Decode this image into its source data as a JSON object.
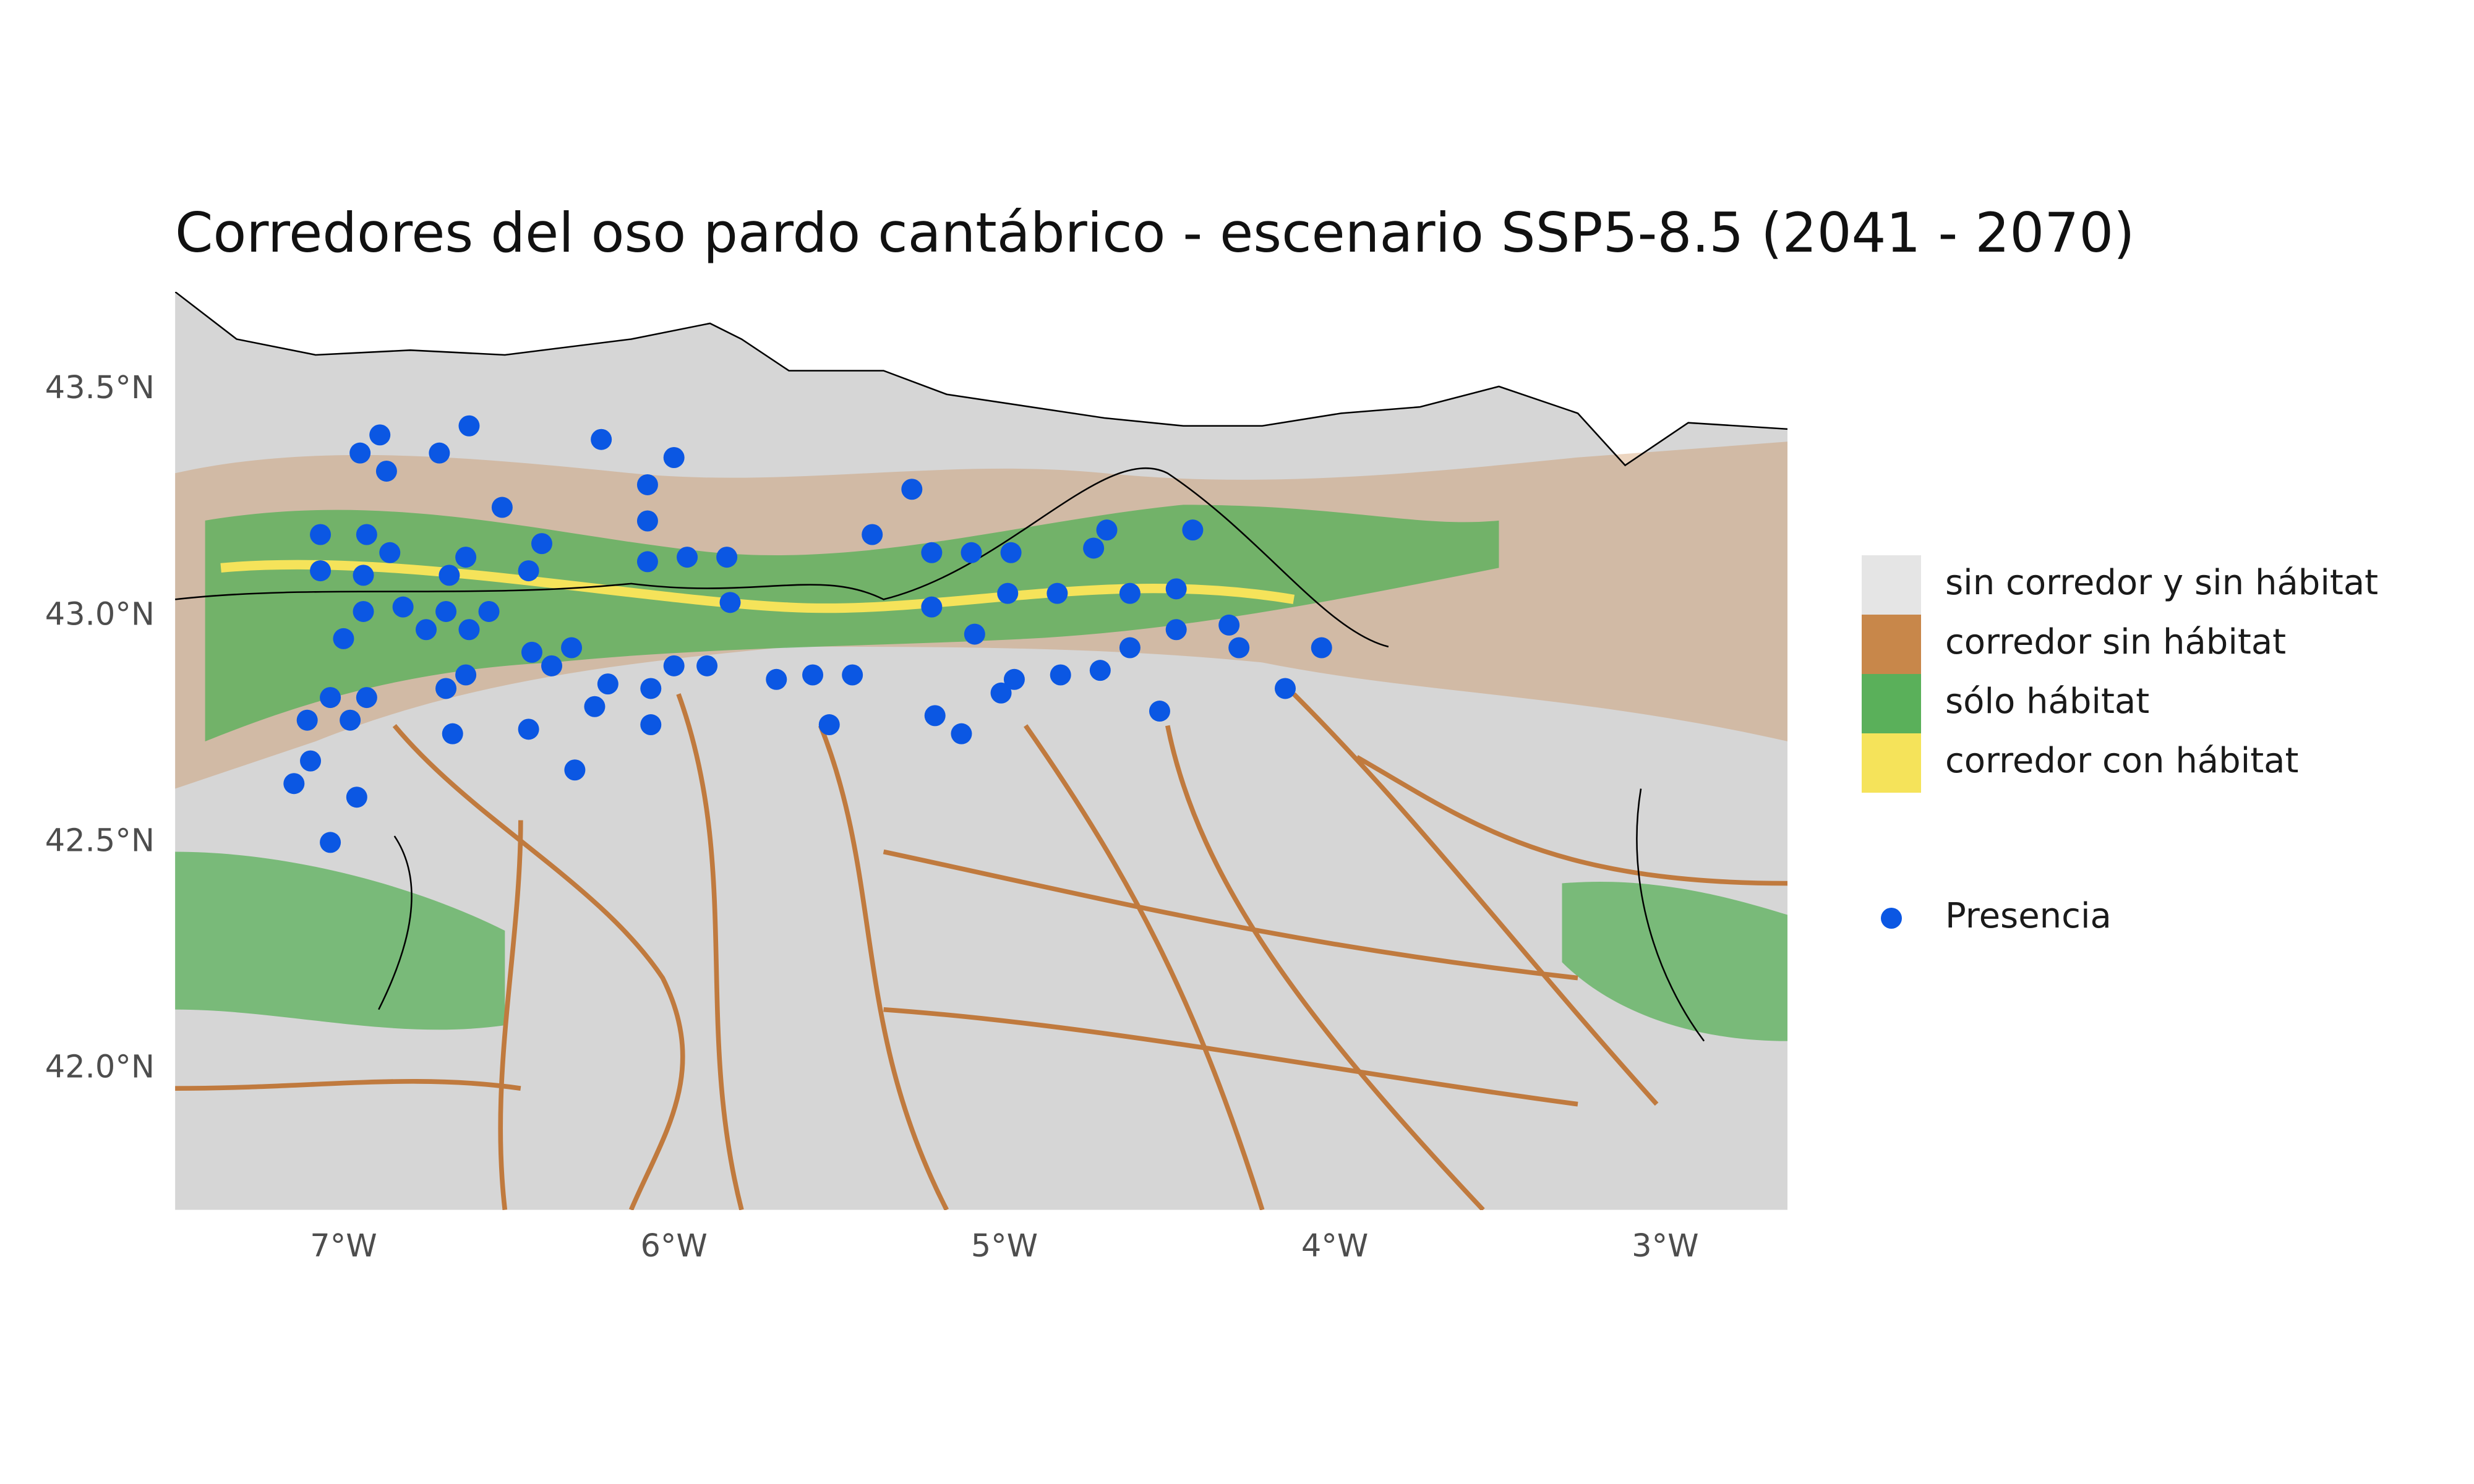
{
  "chart_data": {
    "type": "scatter",
    "title": "Corredores del oso pardo cantábrico - escenario SSP5-8.5 (2041 - 2070)",
    "xlim": [
      -7.51,
      -2.63
    ],
    "ylim": [
      41.688,
      43.716
    ],
    "xticks": [
      {
        "value": -7,
        "label": "7°W"
      },
      {
        "value": -6,
        "label": "6°W"
      },
      {
        "value": -5,
        "label": "5°W"
      },
      {
        "value": -4,
        "label": "4°W"
      },
      {
        "value": -3,
        "label": "3°W"
      }
    ],
    "yticks": [
      {
        "value": 42.0,
        "label": "42.0°N"
      },
      {
        "value": 42.5,
        "label": "42.5°N"
      },
      {
        "value": 43.0,
        "label": "43.0°N"
      },
      {
        "value": 43.5,
        "label": "43.5°N"
      }
    ],
    "grid": false,
    "legend": "right",
    "classes": [
      {
        "name": "sin corredor y sin hábitat",
        "color": "#e5e5e5"
      },
      {
        "name": "corredor sin hábitat",
        "color": "#c8874a"
      },
      {
        "name": "sólo hábitat",
        "color": "#5ab05a"
      },
      {
        "name": "corredor con hábitat",
        "color": "#f5e35a"
      }
    ],
    "x": [
      -6.89,
      -6.95,
      -6.87,
      -6.71,
      -6.62,
      -6.22,
      -6.0,
      -6.08,
      -6.52,
      -7.07,
      -6.93,
      -6.86,
      -7.07,
      -6.94,
      -6.63,
      -6.68,
      -6.4,
      -6.44,
      -6.08,
      -6.08,
      -5.96,
      -5.84,
      -5.83,
      -6.94,
      -6.82,
      -6.69,
      -6.56,
      -6.75,
      -6.62,
      -7.0,
      -6.43,
      -6.37,
      -6.31,
      -6.0,
      -5.9,
      -7.04,
      -6.93,
      -6.69,
      -6.63,
      -7.11,
      -6.98,
      -6.67,
      -6.44,
      -6.2,
      -6.24,
      -6.07,
      -6.07,
      -7.1,
      -7.15,
      -6.96,
      -7.04,
      -6.3,
      -5.28,
      -5.4,
      -5.22,
      -5.1,
      -4.98,
      -4.69,
      -4.73,
      -4.43,
      -5.22,
      -4.99,
      -4.84,
      -4.62,
      -4.48,
      -5.09,
      -4.48,
      -4.32,
      -4.29,
      -4.62,
      -4.71,
      -4.83,
      -4.97,
      -5.01,
      -5.46,
      -5.58,
      -5.69,
      -5.21,
      -5.13,
      -5.53,
      -4.53,
      -4.15,
      -4.04
    ],
    "series": [
      {
        "name": "Presencia",
        "color": "#0b57e3",
        "values": [
          43.4,
          43.36,
          43.32,
          43.36,
          43.42,
          43.39,
          43.35,
          43.29,
          43.24,
          43.18,
          43.18,
          43.14,
          43.1,
          43.09,
          43.13,
          43.09,
          43.16,
          43.1,
          43.21,
          43.12,
          43.13,
          43.13,
          43.03,
          43.01,
          43.02,
          43.01,
          43.01,
          42.97,
          42.97,
          42.95,
          42.92,
          42.89,
          42.93,
          42.89,
          42.89,
          42.82,
          42.82,
          42.84,
          42.87,
          42.77,
          42.77,
          42.74,
          42.75,
          42.85,
          42.8,
          42.84,
          42.76,
          42.68,
          42.63,
          42.6,
          42.5,
          42.66,
          43.28,
          43.18,
          43.14,
          43.14,
          43.14,
          43.19,
          43.15,
          43.19,
          43.02,
          43.05,
          43.05,
          43.05,
          43.06,
          42.96,
          42.97,
          42.98,
          42.93,
          42.93,
          42.88,
          42.87,
          42.86,
          42.83,
          42.87,
          42.87,
          42.86,
          42.78,
          42.74,
          42.76,
          42.79,
          42.84,
          42.93
        ]
      }
    ]
  }
}
